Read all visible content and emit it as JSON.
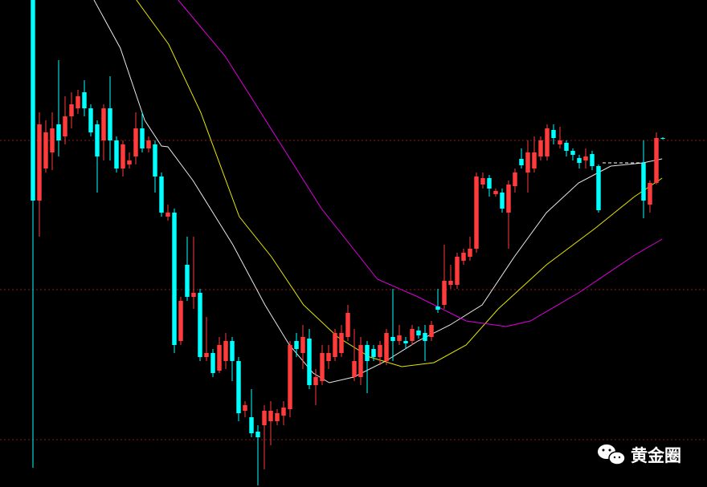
{
  "chart_data": {
    "type": "candlestick",
    "x": [
      0,
      1,
      2,
      3,
      4,
      5,
      6,
      7,
      8,
      9,
      10,
      11,
      12,
      13,
      14,
      15,
      16,
      17,
      18,
      19,
      20,
      21,
      22,
      23,
      24,
      25,
      26,
      27,
      28,
      29,
      30,
      31,
      32,
      33,
      34,
      35,
      36,
      37,
      38,
      39,
      40,
      41,
      42,
      43,
      44,
      45,
      46,
      47,
      48,
      49,
      50,
      51,
      52,
      53,
      54,
      55,
      56,
      57,
      58,
      59,
      60,
      61,
      62,
      63,
      64,
      65,
      66,
      67,
      68,
      69,
      70,
      71,
      72,
      73,
      74,
      75,
      76,
      77,
      78,
      79,
      80,
      81,
      82,
      83,
      84,
      85,
      86,
      87,
      88,
      89,
      90,
      91,
      92,
      93,
      94,
      95,
      96,
      97,
      98
    ],
    "open": [
      607,
      357,
      397,
      417,
      452,
      437,
      462,
      472,
      492,
      472,
      452,
      432,
      472,
      432,
      397,
      402,
      412,
      447,
      422,
      427,
      387,
      337,
      342,
      182,
      277,
      237,
      242,
      162,
      167,
      145,
      157,
      182,
      157,
      95,
      87,
      69,
      77,
      82,
      82,
      89,
      97,
      182,
      167,
      185,
      127,
      132,
      157,
      162,
      167,
      187,
      137,
      137,
      177,
      172,
      162,
      157,
      187,
      182,
      182,
      182,
      195,
      192,
      187,
      225,
      227,
      252,
      252,
      282,
      287,
      297,
      377,
      385,
      365,
      367,
      342,
      375,
      409,
      392,
      397,
      412,
      412,
      445,
      427,
      429,
      419,
      410,
      407,
      415,
      400,
      null,
      null,
      null,
      null,
      null,
      null,
      404,
      352,
      379,
      435
    ],
    "high": [
      607,
      467,
      457,
      467,
      532,
      487,
      492,
      495,
      507,
      477,
      457,
      477,
      512,
      437,
      432,
      417,
      467,
      467,
      437,
      432,
      392,
      352,
      347,
      237,
      312,
      312,
      247,
      212,
      172,
      187,
      192,
      187,
      162,
      107,
      122,
      77,
      102,
      107,
      97,
      107,
      182,
      192,
      202,
      197,
      147,
      177,
      177,
      197,
      202,
      227,
      197,
      187,
      182,
      177,
      182,
      197,
      247,
      202,
      187,
      202,
      200,
      202,
      207,
      247,
      302,
      277,
      292,
      297,
      312,
      392,
      392,
      389,
      372,
      372,
      382,
      397,
      422,
      432,
      437,
      437,
      452,
      452,
      449,
      432,
      422,
      414,
      422,
      419,
      402,
      null,
      null,
      null,
      null,
      null,
      null,
      432,
      382,
      442,
      436
    ],
    "low": [
      24,
      312,
      392,
      395,
      412,
      427,
      447,
      465,
      462,
      437,
      367,
      407,
      407,
      392,
      387,
      397,
      402,
      417,
      417,
      367,
      337,
      332,
      167,
      177,
      232,
      222,
      157,
      157,
      137,
      142,
      147,
      132,
      82,
      87,
      62,
      2,
      22,
      52,
      77,
      77,
      87,
      162,
      147,
      122,
      102,
      127,
      147,
      157,
      162,
      182,
      132,
      127,
      117,
      157,
      152,
      152,
      157,
      177,
      172,
      177,
      185,
      157,
      182,
      217,
      222,
      247,
      247,
      277,
      282,
      292,
      372,
      362,
      362,
      342,
      297,
      367,
      397,
      367,
      392,
      407,
      407,
      427,
      422,
      412,
      407,
      397,
      397,
      395,
      342,
      null,
      null,
      null,
      null,
      null,
      null,
      335,
      342,
      377,
      433
    ],
    "close": [
      357,
      452,
      442,
      447,
      432,
      462,
      477,
      487,
      472,
      442,
      412,
      472,
      432,
      397,
      427,
      407,
      447,
      422,
      432,
      387,
      342,
      342,
      177,
      232,
      237,
      242,
      162,
      167,
      142,
      177,
      182,
      157,
      92,
      102,
      67,
      62,
      95,
      95,
      92,
      99,
      177,
      172,
      187,
      127,
      137,
      167,
      167,
      192,
      192,
      217,
      157,
      177,
      157,
      162,
      177,
      192,
      182,
      189,
      179,
      197,
      189,
      182,
      202,
      221,
      257,
      257,
      287,
      292,
      297,
      387,
      385,
      372,
      369,
      347,
      377,
      392,
      401,
      417,
      417,
      432,
      447,
      435,
      432,
      419,
      414,
      404,
      412,
      400,
      345,
      null,
      null,
      null,
      null,
      null,
      null,
      357,
      379,
      435,
      434
    ],
    "up_color": "#ff3c3c",
    "down_color": "#00ffff",
    "lines": [
      {
        "color": "#e8e8e8",
        "x": [
          9.5,
          13.6,
          17.4,
          20,
          21,
          24.9,
          31.1,
          36.1,
          39.9,
          43.6,
          46.1,
          49.9,
          54.9,
          59.9,
          64.9,
          69.9,
          74.9,
          79.9,
          84.9,
          89.9,
          94.9,
          97.9
        ],
        "values": [
          607,
          547,
          457,
          425,
          424,
          382,
          302,
          227,
          177,
          142,
          130,
          137,
          157,
          182,
          202,
          227,
          287,
          342,
          379,
          400,
          404,
          409
        ]
      },
      {
        "color": "#e6e600",
        "x": [
          16.1,
          21.1,
          26.1,
          32.1,
          37.1,
          42.1,
          47.4,
          52.4,
          57.4,
          62.4,
          67.4,
          72.4,
          79.9,
          87.4,
          93.6,
          97.9
        ],
        "values": [
          607,
          552,
          467,
          337,
          287,
          227,
          187,
          162,
          150,
          155,
          177,
          222,
          277,
          322,
          362,
          385
        ]
      },
      {
        "color": "#e000e0",
        "x": [
          22.6,
          29.9,
          37.4,
          44.9,
          53.6,
          59.9,
          67.4,
          73.6,
          77.4,
          84.9,
          93.6,
          97.9
        ],
        "values": [
          607,
          537,
          442,
          347,
          259,
          237,
          207,
          200,
          207,
          242,
          289,
          309
        ]
      }
    ],
    "xlim": [
      -5.125,
      104.875
    ],
    "ylim": [
      0,
      607
    ]
  },
  "watermark": "黄金圈"
}
